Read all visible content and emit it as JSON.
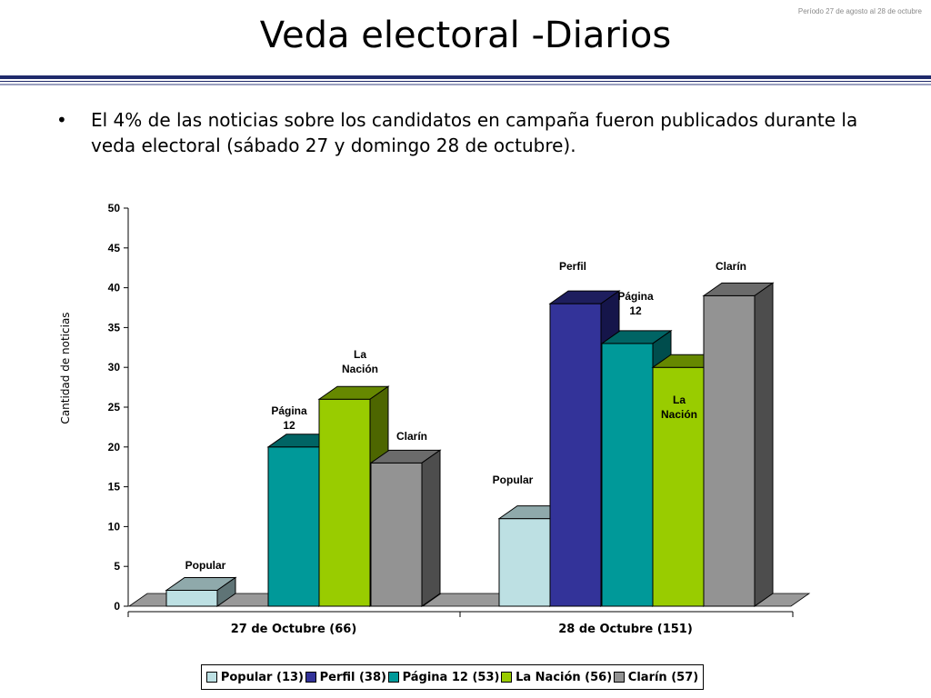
{
  "header": {
    "period_note": "Período 27 de agosto al 28 de octubre",
    "title": "Veda electoral -Diarios"
  },
  "bullets": [
    {
      "symbol": "•",
      "text": "El 4% de las noticias sobre los candidatos en campaña fueron publicados durante la veda electoral (sábado 27 y domingo 28 de octubre)."
    }
  ],
  "chart_data": {
    "type": "bar",
    "title": "",
    "xlabel": "",
    "ylabel": "Cantidad de noticias",
    "ylim": [
      0,
      50
    ],
    "yticks": [
      0,
      5,
      10,
      15,
      20,
      25,
      30,
      35,
      40,
      45,
      50
    ],
    "categories": [
      "27 de Octubre (66)",
      "28 de Octubre (151)"
    ],
    "series": [
      {
        "name": "Popular (13)",
        "bar_label": "Popular",
        "values": [
          2,
          11
        ],
        "color": "#bde0e3",
        "top": "#8fa9ab",
        "side": "#5f7476"
      },
      {
        "name": "Perfil (38)",
        "bar_label": "Perfil",
        "values": [
          0,
          38
        ],
        "color": "#333399",
        "top": "#1e1e5e",
        "side": "#15154a"
      },
      {
        "name": "Página 12 (53)",
        "bar_label": "Página 12",
        "values": [
          20,
          33
        ],
        "color": "#009999",
        "top": "#006464",
        "side": "#004d4d"
      },
      {
        "name": "La Nación (56)",
        "bar_label": "La Nación",
        "values": [
          26,
          30
        ],
        "color": "#99cc00",
        "top": "#668800",
        "side": "#4d6600"
      },
      {
        "name": "Clarín (57)",
        "bar_label": "Clarín",
        "values": [
          18,
          39
        ],
        "color": "#939393",
        "top": "#6b6b6b",
        "side": "#4d4d4d"
      }
    ],
    "grid": false,
    "legend_position": "bottom"
  }
}
